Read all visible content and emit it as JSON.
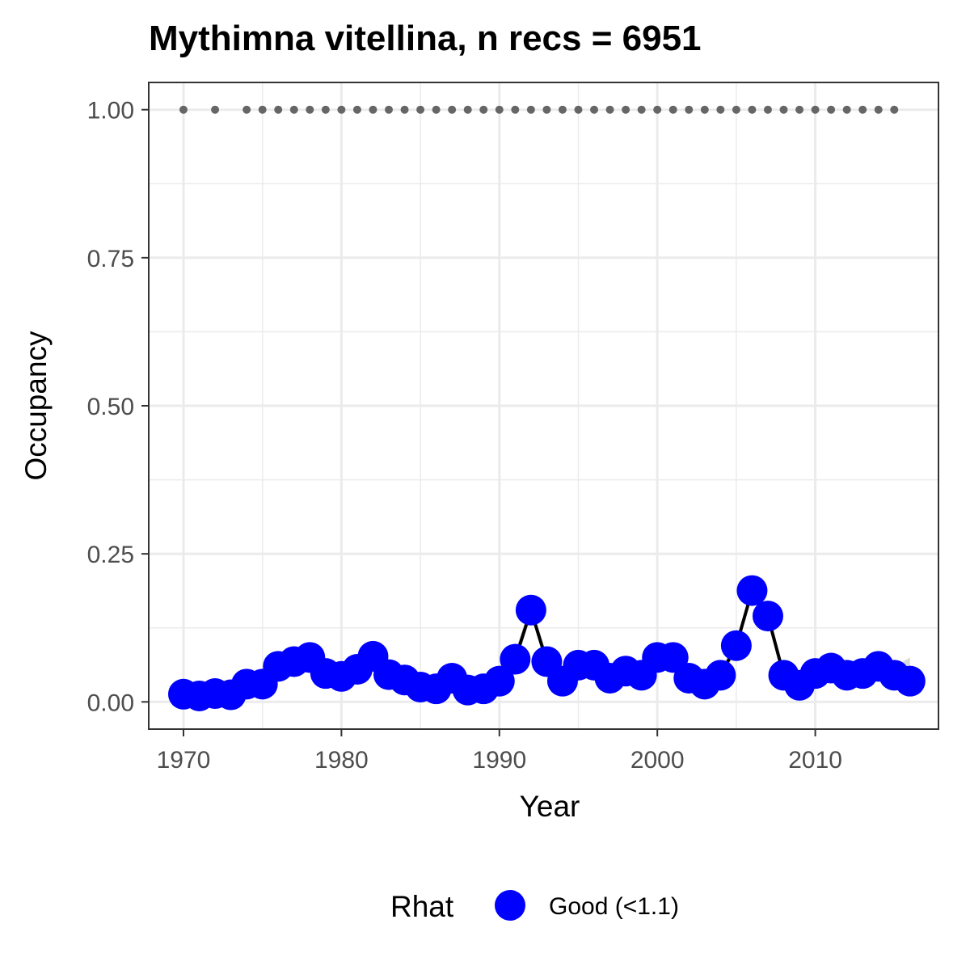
{
  "chart_data": {
    "type": "line",
    "title": "Mythimna vitellina, n recs = 6951",
    "xlabel": "Year",
    "ylabel": "Occupancy",
    "xlim": [
      1967.8,
      2017.8
    ],
    "ylim": [
      -0.046,
      1.046
    ],
    "x_ticks": [
      1970,
      1980,
      1990,
      2000,
      2010
    ],
    "x_tick_labels": [
      "1970",
      "1980",
      "1990",
      "2000",
      "2010"
    ],
    "y_ticks": [
      0,
      0.25,
      0.5,
      0.75,
      1.0
    ],
    "y_tick_labels": [
      "0.00",
      "0.25",
      "0.50",
      "0.75",
      "1.00"
    ],
    "grid": true,
    "legend": {
      "position": "bottom",
      "title": "Rhat",
      "entries": [
        {
          "label": "Good (<1.1)",
          "color": "#0000ff"
        }
      ]
    },
    "colors": {
      "point": "#0000ff",
      "line": "#000000",
      "ribbon": "#d3d3d3",
      "record_marker": "#666666",
      "grid": "#ebebeb",
      "panel_border": "#333333"
    },
    "series": [
      {
        "x": [
          1970,
          1971,
          1972,
          1973,
          1974,
          1975,
          1976,
          1977,
          1978,
          1979,
          1980,
          1981,
          1982,
          1983,
          1984,
          1985,
          1986,
          1987,
          1988,
          1989,
          1990,
          1991,
          1992,
          1993,
          1994,
          1995,
          1996,
          1997,
          1998,
          1999,
          2000,
          2001,
          2002,
          2003,
          2004,
          2005,
          2006,
          2007,
          2008,
          2009,
          2010,
          2011,
          2012,
          2013,
          2014,
          2015,
          2016
        ],
        "values": [
          0.013,
          0.01,
          0.014,
          0.012,
          0.03,
          0.03,
          0.06,
          0.068,
          0.075,
          0.048,
          0.043,
          0.055,
          0.077,
          0.046,
          0.037,
          0.025,
          0.022,
          0.04,
          0.02,
          0.022,
          0.035,
          0.072,
          0.155,
          0.068,
          0.035,
          0.062,
          0.062,
          0.04,
          0.052,
          0.045,
          0.075,
          0.075,
          0.04,
          0.03,
          0.045,
          0.095,
          0.188,
          0.145,
          0.045,
          0.028,
          0.048,
          0.057,
          0.045,
          0.048,
          0.06,
          0.045,
          0.035
        ]
      }
    ],
    "ribbon_upper": [
      0.02,
      0.018,
      0.02,
      0.02,
      0.04,
      0.042,
      0.075,
      0.085,
      0.095,
      0.062,
      0.06,
      0.078,
      0.095,
      0.058,
      0.048,
      0.035,
      0.03,
      0.052,
      0.03,
      0.03,
      0.048,
      0.085,
      0.165,
      0.08,
      0.048,
      0.075,
      0.075,
      0.052,
      0.065,
      0.058,
      0.088,
      0.088,
      0.052,
      0.04,
      0.055,
      0.105,
      0.195,
      0.155,
      0.058,
      0.038,
      0.06,
      0.07,
      0.058,
      0.06,
      0.072,
      0.06,
      0.075
    ],
    "ribbon_lower": [
      0.008,
      0.006,
      0.009,
      0.007,
      0.022,
      0.022,
      0.048,
      0.055,
      0.06,
      0.036,
      0.032,
      0.04,
      0.062,
      0.036,
      0.028,
      0.018,
      0.016,
      0.03,
      0.014,
      0.016,
      0.026,
      0.06,
      0.145,
      0.058,
      0.026,
      0.05,
      0.05,
      0.03,
      0.04,
      0.034,
      0.063,
      0.063,
      0.03,
      0.022,
      0.036,
      0.085,
      0.18,
      0.135,
      0.035,
      0.02,
      0.038,
      0.046,
      0.035,
      0.038,
      0.049,
      0.034,
      0.025
    ],
    "record_years": [
      1970,
      1972,
      1974,
      1975,
      1976,
      1977,
      1978,
      1979,
      1980,
      1981,
      1982,
      1983,
      1984,
      1985,
      1986,
      1987,
      1988,
      1989,
      1990,
      1991,
      1992,
      1993,
      1994,
      1995,
      1996,
      1997,
      1998,
      1999,
      2000,
      2001,
      2002,
      2003,
      2004,
      2005,
      2006,
      2007,
      2008,
      2009,
      2010,
      2011,
      2012,
      2013,
      2014,
      2015
    ],
    "record_value": 1.0
  }
}
